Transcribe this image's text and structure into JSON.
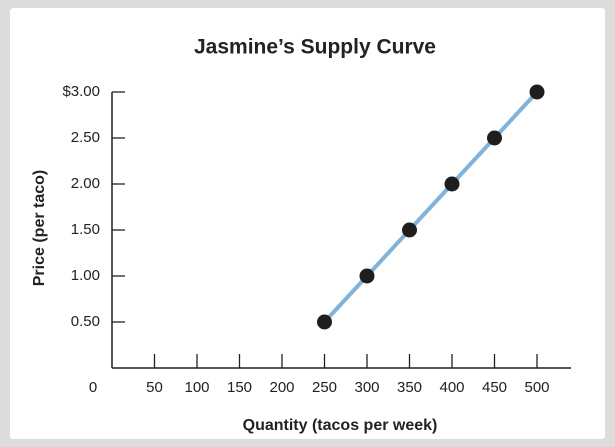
{
  "chart_data": {
    "type": "line",
    "title": "Jasmine’s Supply Curve",
    "x_label": "Quantity (tacos per week)",
    "y_label": "Price (per taco)",
    "x": [
      250,
      300,
      350,
      400,
      450,
      500
    ],
    "series": [
      {
        "color": "#7fb3db",
        "values": [
          0.5,
          1.0,
          1.5,
          2.0,
          2.5,
          3.0
        ]
      }
    ],
    "xlim": [
      0,
      540
    ],
    "ylim": [
      0,
      3.0
    ],
    "xticks": [
      0,
      50,
      100,
      150,
      200,
      250,
      300,
      350,
      400,
      450,
      500
    ],
    "yticks": [
      {
        "value": 0.5,
        "label": "0.50"
      },
      {
        "value": 1.0,
        "label": "1.00"
      },
      {
        "value": 1.5,
        "label": "1.50"
      },
      {
        "value": 2.0,
        "label": "2.00"
      },
      {
        "value": 2.5,
        "label": "2.50"
      },
      {
        "value": 3.0,
        "label": "$3.00"
      }
    ],
    "marker_color": "#1e1e1e"
  }
}
